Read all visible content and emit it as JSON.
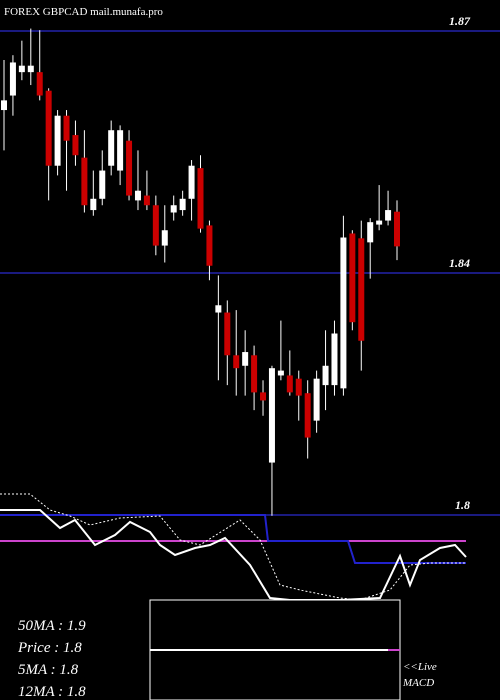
{
  "chart_data": {
    "type": "candlestick",
    "title": "FOREX  GBPCAD mail.munafa.pro",
    "up_color": "#ffffff",
    "down_color": "#cc0000",
    "grid_color": "#1a1a80",
    "ylim": [
      1.81,
      1.87
    ],
    "yticks": [
      1.87,
      {
        "value": 1.84,
        "label": "1.84"
      },
      {
        "value": 1.81,
        "label": "1.8"
      }
    ],
    "open": [
      1.8602,
      1.862,
      1.8649,
      1.8649,
      1.8649,
      1.8626,
      1.8533,
      1.8595,
      1.8571,
      1.8543,
      1.8478,
      1.8492,
      1.8533,
      1.8527,
      1.8564,
      1.849,
      1.8496,
      1.8484,
      1.8434,
      1.8475,
      1.8478,
      1.8492,
      1.853,
      1.8459,
      1.8351,
      1.8351,
      1.8298,
      1.8285,
      1.8298,
      1.8252,
      1.8165,
      1.8273,
      1.8273,
      1.8269,
      1.8251,
      1.8217,
      1.8261,
      1.8261,
      1.8257,
      1.8449,
      1.8443,
      1.8438,
      1.846,
      1.8465,
      1.8476
    ],
    "high": [
      1.8664,
      1.867,
      1.8688,
      1.8703,
      1.8701,
      1.8629,
      1.8602,
      1.8602,
      1.8589,
      1.8577,
      1.8527,
      1.8552,
      1.8589,
      1.8583,
      1.8577,
      1.8552,
      1.8527,
      1.8496,
      1.8484,
      1.8496,
      1.8502,
      1.854,
      1.8546,
      1.8465,
      1.8397,
      1.8366,
      1.8354,
      1.8329,
      1.831,
      1.8267,
      1.8285,
      1.8341,
      1.8304,
      1.8279,
      1.8267,
      1.8279,
      1.8329,
      1.8341,
      1.8471,
      1.8453,
      1.8465,
      1.8468,
      1.8509,
      1.8502,
      1.849
    ],
    "low": [
      1.8552,
      1.8595,
      1.8639,
      1.8633,
      1.8614,
      1.849,
      1.8521,
      1.8502,
      1.8533,
      1.8475,
      1.8471,
      1.8484,
      1.8521,
      1.8509,
      1.849,
      1.8478,
      1.8478,
      1.8422,
      1.8413,
      1.8465,
      1.8471,
      1.8465,
      1.845,
      1.8391,
      1.8267,
      1.8261,
      1.8248,
      1.8248,
      1.823,
      1.8223,
      1.8099,
      1.8267,
      1.8248,
      1.8217,
      1.817,
      1.8202,
      1.823,
      1.8248,
      1.8248,
      1.8329,
      1.8279,
      1.8393,
      1.8453,
      1.8459,
      1.8416
    ],
    "close": [
      1.8614,
      1.8661,
      1.8657,
      1.8657,
      1.862,
      1.8533,
      1.8595,
      1.8564,
      1.8546,
      1.8484,
      1.8492,
      1.8527,
      1.8577,
      1.8577,
      1.8496,
      1.8502,
      1.8484,
      1.8434,
      1.8453,
      1.8484,
      1.8492,
      1.8533,
      1.8455,
      1.8409,
      1.836,
      1.8298,
      1.8282,
      1.8302,
      1.8252,
      1.8242,
      1.8282,
      1.8279,
      1.8252,
      1.8248,
      1.8196,
      1.8269,
      1.8285,
      1.8325,
      1.8444,
      1.8339,
      1.8316,
      1.8463,
      1.8465,
      1.8478,
      1.8433
    ],
    "stats": [
      "50MA : 1.9",
      "Price  : 1.8",
      "5MA : 1.8",
      "12MA : 1.8"
    ],
    "live_label": "<<Live",
    "macd_label": "MACD"
  }
}
